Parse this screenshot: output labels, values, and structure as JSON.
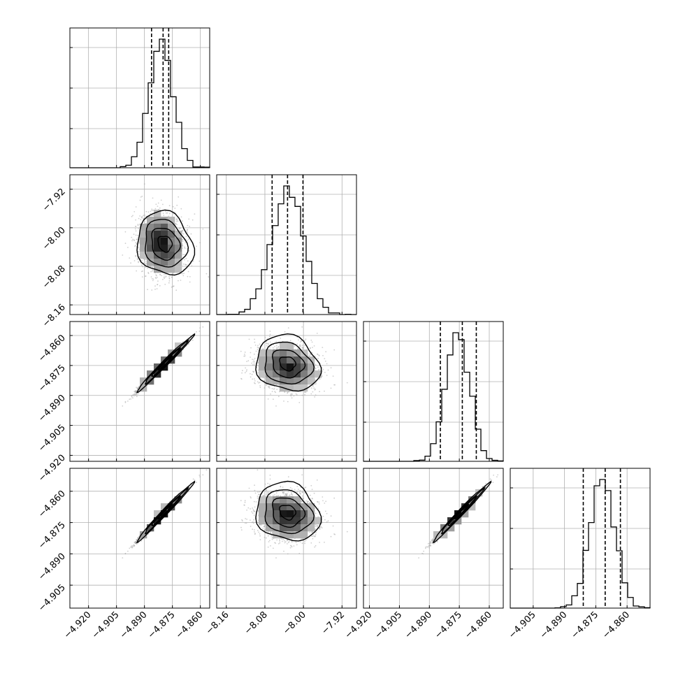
{
  "chart_data": {
    "type": "corner",
    "n_params": 4,
    "grid": true,
    "colors": {
      "hist": "#000000",
      "scatter": "#a8a8a8",
      "density_dark": "#1a1a1a",
      "grid": "#b0b0b0"
    },
    "params": [
      {
        "range": [
          -4.93,
          -4.855
        ],
        "ticks": [
          -4.92,
          -4.905,
          -4.89,
          -4.875,
          -4.86
        ],
        "tick_labels": [
          "−4.920",
          "−4.905",
          "−4.890",
          "−4.875",
          "−4.860"
        ],
        "mean": -4.879,
        "sd": 0.0075,
        "skew": 1.4,
        "quantiles": [
          -4.8862,
          -4.88,
          -4.877
        ]
      },
      {
        "range": [
          -8.18,
          -7.89
        ],
        "ticks": [
          -8.16,
          -8.08,
          -8.0,
          -7.92
        ],
        "tick_labels": [
          "−8.16",
          "−8.08",
          "−8.00",
          "−7.92"
        ],
        "mean": -8.033,
        "sd": 0.033,
        "skew": 0.0,
        "quantiles": [
          -8.065,
          -8.033,
          -8.001
        ]
      },
      {
        "range": [
          -4.923,
          -4.853
        ],
        "ticks": [
          -4.92,
          -4.905,
          -4.89,
          -4.875,
          -4.86
        ],
        "tick_labels": [
          "−4.920",
          "−4.905",
          "−4.890",
          "−4.875",
          "−4.860"
        ],
        "mean": -4.874,
        "sd": 0.007,
        "skew": 1.4,
        "quantiles": [
          -4.8845,
          -4.8735,
          -4.8665
        ]
      },
      {
        "range": [
          -4.916,
          -4.849
        ],
        "ticks": [
          -4.905,
          -4.89,
          -4.875,
          -4.86
        ],
        "tick_labels": [
          "−4.905",
          "−4.890",
          "−4.875",
          "−4.860"
        ],
        "mean": -4.87,
        "sd": 0.007,
        "skew": 1.4,
        "quantiles": [
          -4.881,
          -4.8705,
          -4.8632
        ]
      }
    ],
    "correlations": {
      "1-0": -0.15,
      "2-0": 0.99,
      "2-1": -0.15,
      "3-0": 0.99,
      "3-1": -0.15,
      "3-2": 0.99
    },
    "bins": 25
  }
}
